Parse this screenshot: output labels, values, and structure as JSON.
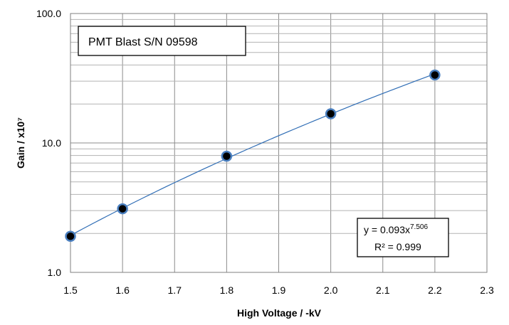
{
  "chart_data": {
    "type": "scatter",
    "title": "PMT Blast S/N 09598",
    "xlabel": "High Voltage  /  -kV",
    "ylabel": "Gain  /  x10⁷",
    "xlim": [
      1.5,
      2.3
    ],
    "ylim": [
      1.0,
      100.0
    ],
    "y_scale": "log",
    "grid": true,
    "x_ticks": [
      "1.5",
      "1.6",
      "1.7",
      "1.8",
      "1.9",
      "2.0",
      "2.1",
      "2.2",
      "2.3"
    ],
    "y_ticks": [
      "1.0",
      "10.0",
      "100.0"
    ],
    "series": [
      {
        "x": [
          1.5,
          1.6,
          1.8,
          2.0,
          2.2
        ],
        "y": [
          1.9,
          3.1,
          7.9,
          16.8,
          33.5
        ],
        "marker_color": "#4a7fbf",
        "trend_color": "#2f6db5"
      }
    ],
    "trendline": {
      "equation_prefix": "y = 0.093x",
      "equation_exponent": "7.506",
      "r_squared": "R² = 0.999",
      "coefficient": 0.093,
      "exponent": 7.506
    }
  }
}
